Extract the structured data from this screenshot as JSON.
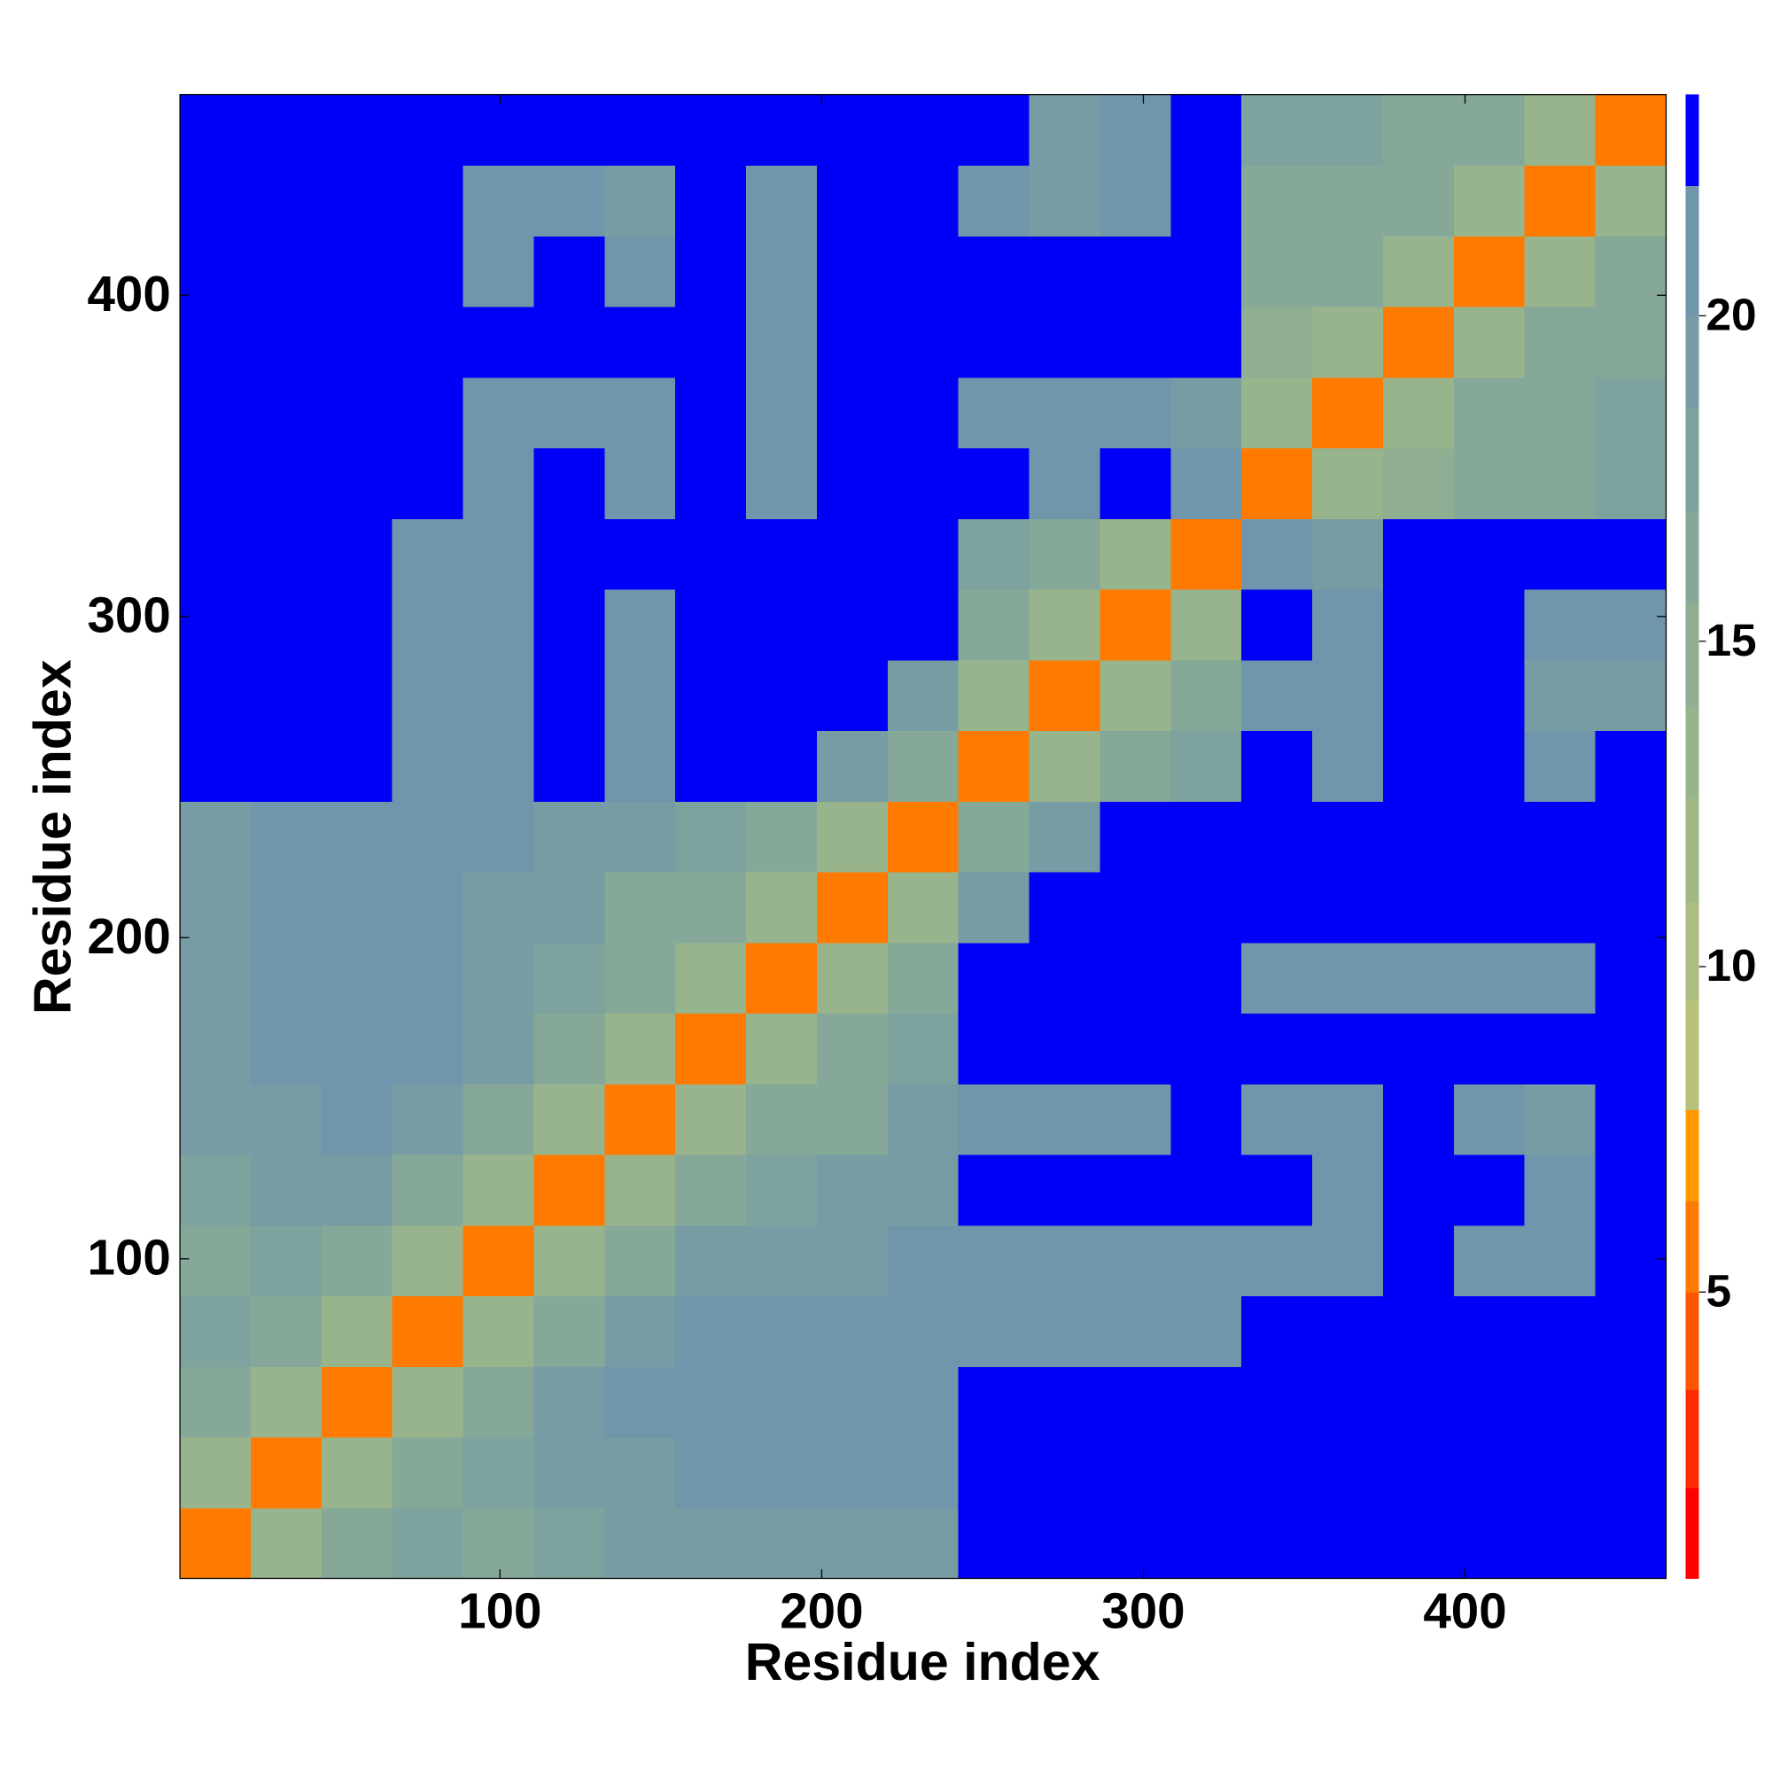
{
  "chart_data": {
    "type": "heatmap",
    "x_label": "Residue index",
    "y_label": "Residue index",
    "x": [
      0.5,
      22.5,
      44.5,
      66.5,
      88.5,
      110.5,
      132.5,
      154.5,
      176.5,
      198.5,
      220.5,
      242.5,
      264.5,
      286.5,
      308.5,
      330.5,
      352.5,
      374.5,
      396.5,
      418.5,
      440.5,
      462.5
    ],
    "y": [
      0.5,
      22.5,
      44.5,
      66.5,
      88.5,
      110.5,
      132.5,
      154.5,
      176.5,
      198.5,
      220.5,
      242.5,
      264.5,
      286.5,
      308.5,
      330.5,
      352.5,
      374.5,
      396.5,
      418.5,
      440.5,
      462.5
    ],
    "xlim": [
      0.5,
      462.5
    ],
    "ylim": [
      0.5,
      462.5
    ],
    "xticks": [
      100,
      200,
      300,
      400
    ],
    "yticks": [
      100,
      200,
      300,
      400
    ],
    "z": [
      [
        6,
        14,
        16,
        18,
        17,
        18,
        19,
        19,
        20,
        19,
        20,
        23,
        23,
        23,
        23,
        23,
        23,
        23,
        23,
        23,
        23
      ],
      [
        14,
        6,
        14,
        17,
        18,
        20,
        20,
        21,
        21,
        21,
        21,
        23,
        23,
        23,
        23,
        23,
        23,
        23,
        23,
        23,
        23
      ],
      [
        16,
        14,
        6,
        14,
        17,
        19,
        21,
        22,
        22,
        22,
        22,
        23,
        23,
        23,
        23,
        23,
        23,
        23,
        23,
        23,
        23
      ],
      [
        18,
        17,
        14,
        6,
        14,
        17,
        19,
        21,
        21,
        21,
        22,
        21,
        21,
        21,
        22,
        23,
        23,
        23,
        23,
        23,
        23
      ],
      [
        17,
        18,
        17,
        14,
        6,
        14,
        16,
        19,
        20,
        20,
        21,
        21,
        21,
        21,
        22,
        21,
        21,
        23,
        21,
        21,
        23
      ],
      [
        18,
        20,
        19,
        17,
        14,
        6,
        14,
        16,
        18,
        19,
        20,
        23,
        23,
        23,
        23,
        23,
        21,
        23,
        23,
        21,
        23
      ],
      [
        19,
        20,
        21,
        19,
        16,
        14,
        6,
        14,
        16,
        17,
        19,
        22,
        22,
        22,
        23,
        21,
        21,
        23,
        21,
        20,
        23
      ],
      [
        19,
        21,
        22,
        21,
        19,
        16,
        14,
        6,
        14,
        16,
        18,
        23,
        23,
        23,
        23,
        23,
        23,
        23,
        23,
        23,
        23
      ],
      [
        20,
        21,
        22,
        21,
        20,
        18,
        16,
        14,
        6,
        14,
        16,
        23,
        23,
        23,
        23,
        22,
        22,
        22,
        22,
        22,
        23
      ],
      [
        19,
        21,
        22,
        21,
        20,
        19,
        17,
        16,
        14,
        6,
        14,
        20,
        23,
        23,
        23,
        23,
        23,
        23,
        23,
        23,
        23
      ],
      [
        20,
        21,
        22,
        22,
        21,
        20,
        19,
        18,
        16,
        14,
        6,
        17,
        20,
        23,
        23,
        23,
        23,
        23,
        23,
        23,
        23
      ],
      [
        23,
        23,
        23,
        21,
        21,
        23,
        22,
        23,
        23,
        20,
        17,
        6,
        14,
        16,
        18,
        23,
        21,
        23,
        23,
        21,
        23
      ],
      [
        23,
        23,
        23,
        21,
        21,
        23,
        22,
        23,
        23,
        23,
        20,
        14,
        6,
        14,
        16,
        22,
        21,
        23,
        23,
        20,
        20
      ],
      [
        23,
        23,
        23,
        21,
        21,
        23,
        22,
        23,
        23,
        23,
        23,
        16,
        14,
        6,
        14,
        23,
        21,
        23,
        23,
        21,
        21
      ],
      [
        23,
        23,
        23,
        22,
        22,
        23,
        23,
        23,
        23,
        23,
        23,
        18,
        16,
        14,
        6,
        21,
        20,
        23,
        23,
        23,
        23
      ],
      [
        23,
        23,
        23,
        23,
        21,
        23,
        21,
        23,
        22,
        23,
        23,
        23,
        22,
        23,
        21,
        6,
        14,
        15,
        17,
        17,
        18
      ],
      [
        23,
        23,
        23,
        23,
        21,
        21,
        21,
        23,
        22,
        23,
        23,
        21,
        21,
        21,
        20,
        14,
        6,
        14,
        16,
        17,
        18
      ],
      [
        23,
        23,
        23,
        23,
        23,
        23,
        23,
        23,
        22,
        23,
        23,
        23,
        23,
        23,
        23,
        15,
        14,
        6,
        14,
        16,
        17
      ],
      [
        23,
        23,
        23,
        23,
        21,
        23,
        21,
        23,
        22,
        23,
        23,
        23,
        23,
        23,
        23,
        17,
        16,
        14,
        6,
        14,
        16
      ],
      [
        23,
        23,
        23,
        23,
        21,
        21,
        20,
        23,
        22,
        23,
        23,
        21,
        20,
        21,
        23,
        17,
        17,
        16,
        14,
        6,
        14
      ],
      [
        23,
        23,
        23,
        23,
        23,
        23,
        23,
        23,
        23,
        23,
        23,
        23,
        20,
        21,
        23,
        18,
        18,
        17,
        16,
        14,
        6
      ]
    ],
    "colorbar": {
      "levels": [
        0.6,
        2,
        3.5,
        5,
        6.4,
        7.8,
        9.5,
        11,
        12.6,
        14,
        15.6,
        17,
        18.6,
        20,
        22,
        23.4
      ],
      "colors": [
        "#ff0000",
        "#ff2a00",
        "#ff5500",
        "#ff7a00",
        "#ff9900",
        "#b8c07a",
        "#abbd80",
        "#a0b886",
        "#98b48c",
        "#8fae92",
        "#86a898",
        "#7ea29e",
        "#779ca3",
        "#6f96aa",
        "#0000f8"
      ],
      "ticks": [
        5,
        10,
        15,
        20
      ]
    }
  }
}
